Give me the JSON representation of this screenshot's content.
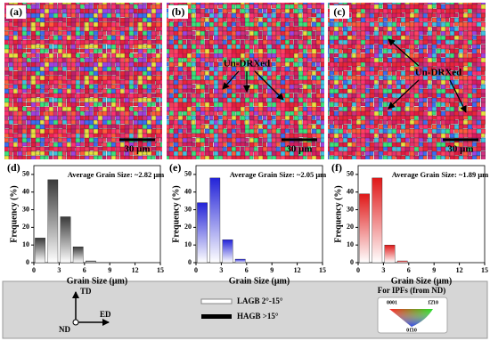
{
  "maps": [
    {
      "label": "(a)",
      "scale_bar": "30 μm"
    },
    {
      "label": "(b)",
      "scale_bar": "30 μm",
      "annotation": "Un-DRXed"
    },
    {
      "label": "(c)",
      "scale_bar": "30 μm",
      "annotation": "Un-DRXed"
    }
  ],
  "chart_data": [
    {
      "type": "histogram",
      "panel_label": "(d)",
      "annotation": "Average Grain Size: ~2.82 μm",
      "x_label": "Grain Size (μm)",
      "y_label": "Frequency (%)",
      "bins": [
        0,
        1.5,
        3,
        4.5,
        6,
        7.5
      ],
      "values": [
        14,
        47,
        26,
        9,
        1
      ],
      "color": "#3a3a3a",
      "xlim": [
        0,
        15
      ],
      "xticks": [
        0,
        3,
        6,
        9,
        12,
        15
      ],
      "ylim": [
        0,
        55
      ],
      "yticks": [
        0,
        10,
        20,
        30,
        40,
        50
      ]
    },
    {
      "type": "histogram",
      "panel_label": "(e)",
      "annotation": "Average Grain Size: ~2.05 μm",
      "x_label": "Grain Size (μm)",
      "y_label": "Frequency (%)",
      "bins": [
        0,
        1.5,
        3,
        4.5,
        6
      ],
      "values": [
        34,
        48,
        13,
        2
      ],
      "color": "#2323d8",
      "xlim": [
        0,
        15
      ],
      "xticks": [
        0,
        3,
        6,
        9,
        12,
        15
      ],
      "ylim": [
        0,
        55
      ],
      "yticks": [
        0,
        10,
        20,
        30,
        40,
        50
      ]
    },
    {
      "type": "histogram",
      "panel_label": "(f)",
      "annotation": "Average Grain Size: ~1.89 μm",
      "x_label": "Grain Size (μm)",
      "y_label": "Frequency (%)",
      "bins": [
        0,
        1.5,
        3,
        4.5,
        6
      ],
      "values": [
        39,
        48,
        10,
        1
      ],
      "color": "#e01818",
      "xlim": [
        0,
        15
      ],
      "xticks": [
        0,
        3,
        6,
        9,
        12,
        15
      ],
      "ylim": [
        0,
        55
      ],
      "yticks": [
        0,
        10,
        20,
        30,
        40,
        50
      ]
    }
  ],
  "legend": {
    "axes": {
      "td": "TD",
      "ed": "ED",
      "nd": "ND"
    },
    "boundaries": [
      {
        "label": "LAGB 2°-15°"
      },
      {
        "label": "HAGB >15°"
      }
    ],
    "ipf": {
      "title": "For IPFs (from ND)",
      "corners": [
        "0001",
        "1̄2̄10",
        "01̄10"
      ]
    }
  }
}
